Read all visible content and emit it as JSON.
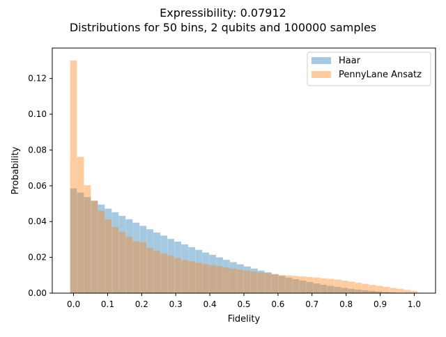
{
  "chart_data": {
    "type": "bar",
    "title": "Expressibility: 0.07912",
    "subtitle": "Distributions for 50 bins, 2 qubits and 100000 samples",
    "xlabel": "Fidelity",
    "ylabel": "Probability",
    "xlim": [
      -0.0625,
      1.0625
    ],
    "ylim": [
      0,
      0.137
    ],
    "xticks": [
      "0.0",
      "0.1",
      "0.2",
      "0.3",
      "0.4",
      "0.5",
      "0.6",
      "0.7",
      "0.8",
      "0.9",
      "1.0"
    ],
    "yticks": [
      "0.00",
      "0.02",
      "0.04",
      "0.06",
      "0.08",
      "0.10",
      "0.12"
    ],
    "grid": false,
    "legend_position": "top-right",
    "bar_width": 0.02,
    "bin_step": 0.0204,
    "series": [
      {
        "name": "Haar",
        "color": "#1f77b4",
        "alpha": 0.4,
        "values": [
          0.0585,
          0.0562,
          0.0537,
          0.0516,
          0.0495,
          0.0472,
          0.0452,
          0.0432,
          0.0413,
          0.0394,
          0.0376,
          0.0357,
          0.0339,
          0.0322,
          0.0303,
          0.0288,
          0.0272,
          0.0257,
          0.0242,
          0.0227,
          0.0214,
          0.02,
          0.0186,
          0.0173,
          0.0161,
          0.0149,
          0.0137,
          0.0126,
          0.0116,
          0.0106,
          0.0096,
          0.0086,
          0.0078,
          0.007,
          0.0062,
          0.0054,
          0.0047,
          0.0041,
          0.0035,
          0.0029,
          0.0024,
          0.002,
          0.0016,
          0.0012,
          0.0009,
          0.0006,
          0.0004,
          0.0002,
          0.0001,
          0.0
        ]
      },
      {
        "name": "PennyLane Ansatz",
        "color": "#ff7f0e",
        "alpha": 0.4,
        "values": [
          0.13,
          0.0762,
          0.0603,
          0.0517,
          0.046,
          0.0412,
          0.037,
          0.0343,
          0.0316,
          0.029,
          0.0285,
          0.0253,
          0.0237,
          0.0221,
          0.0209,
          0.0197,
          0.0185,
          0.0178,
          0.017,
          0.0162,
          0.0157,
          0.015,
          0.0143,
          0.0137,
          0.0131,
          0.0126,
          0.0121,
          0.0115,
          0.0111,
          0.0106,
          0.0101,
          0.0099,
          0.0096,
          0.0093,
          0.009,
          0.0087,
          0.0083,
          0.008,
          0.0076,
          0.007,
          0.0064,
          0.0058,
          0.0052,
          0.0046,
          0.0041,
          0.0035,
          0.0029,
          0.0024,
          0.0018,
          0.0011
        ]
      }
    ]
  }
}
